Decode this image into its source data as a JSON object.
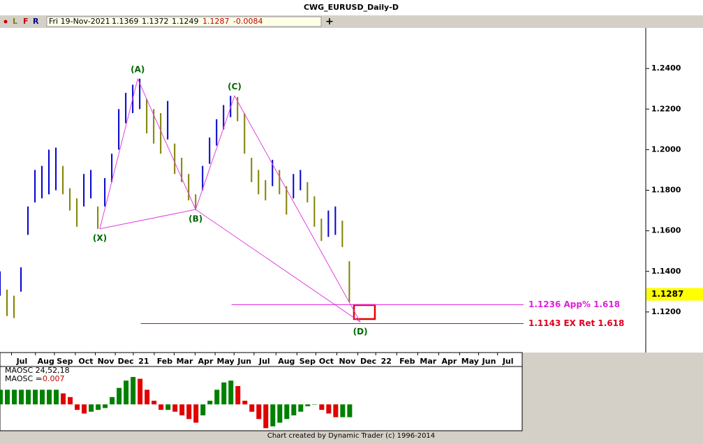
{
  "title": "CWG_EURUSD_Daily-D",
  "toolbar": {
    "buttons": [
      "L",
      "F",
      "R"
    ],
    "date": "Fri 19-Nov-2021",
    "open": 1.1369,
    "high": 1.1372,
    "low": 1.1249,
    "close": 1.1287,
    "change": -0.0084
  },
  "footer": "Chart created by Dynamic Trader  (c) 1996-2014",
  "chart_data": [
    {
      "type": "ohlc",
      "x": [
        0,
        7,
        14,
        21,
        28,
        35,
        42,
        49,
        56,
        63,
        70,
        77,
        84,
        91,
        98,
        105,
        112,
        119,
        126,
        133,
        140,
        147,
        154,
        161,
        168,
        175,
        182,
        189,
        196,
        203,
        210,
        217,
        224,
        231,
        238,
        245,
        252,
        259,
        266,
        273,
        280,
        287,
        294,
        301,
        308,
        315,
        322,
        329,
        336,
        343,
        350
      ],
      "high": [
        1.14,
        1.131,
        1.128,
        1.142,
        1.172,
        1.19,
        1.192,
        1.2,
        1.201,
        1.192,
        1.181,
        1.176,
        1.188,
        1.19,
        1.172,
        1.186,
        1.198,
        1.22,
        1.228,
        1.232,
        1.235,
        1.225,
        1.22,
        1.218,
        1.224,
        1.203,
        1.196,
        1.188,
        1.178,
        1.192,
        1.206,
        1.215,
        1.222,
        1.2265,
        1.226,
        1.218,
        1.196,
        1.19,
        1.185,
        1.195,
        1.19,
        1.182,
        1.188,
        1.19,
        1.184,
        1.177,
        1.166,
        1.17,
        1.172,
        1.165,
        1.145
      ],
      "low": [
        1.128,
        1.118,
        1.117,
        1.13,
        1.158,
        1.174,
        1.176,
        1.178,
        1.18,
        1.178,
        1.17,
        1.162,
        1.172,
        1.176,
        1.161,
        1.172,
        1.184,
        1.2,
        1.213,
        1.218,
        1.22,
        1.208,
        1.203,
        1.198,
        1.205,
        1.188,
        1.184,
        1.175,
        1.1705,
        1.18,
        1.193,
        1.202,
        1.21,
        1.216,
        1.214,
        1.198,
        1.184,
        1.178,
        1.175,
        1.182,
        1.178,
        1.168,
        1.176,
        1.18,
        1.174,
        1.162,
        1.155,
        1.157,
        1.158,
        1.152,
        1.1249
      ],
      "up_color": "#0000cc",
      "down_color": "#808000",
      "xlim": [
        0,
        647
      ],
      "ylim": [
        1.1,
        1.26
      ],
      "xticks": [
        {
          "value": 22,
          "label": "Jul"
        },
        {
          "value": 46,
          "label": "Aug"
        },
        {
          "value": 65,
          "label": "Sep"
        },
        {
          "value": 86,
          "label": "Oct"
        },
        {
          "value": 106,
          "label": "Nov"
        },
        {
          "value": 126,
          "label": "Dec"
        },
        {
          "value": 144,
          "label": "21"
        },
        {
          "value": 165,
          "label": "Feb"
        },
        {
          "value": 185,
          "label": "Mar"
        },
        {
          "value": 206,
          "label": "Apr"
        },
        {
          "value": 226,
          "label": "May"
        },
        {
          "value": 245,
          "label": "Jun"
        },
        {
          "value": 265,
          "label": "Jul"
        },
        {
          "value": 287,
          "label": "Aug"
        },
        {
          "value": 308,
          "label": "Sep"
        },
        {
          "value": 327,
          "label": "Oct"
        },
        {
          "value": 348,
          "label": "Nov"
        },
        {
          "value": 369,
          "label": "Dec"
        },
        {
          "value": 387,
          "label": "22"
        },
        {
          "value": 408,
          "label": "Feb"
        },
        {
          "value": 429,
          "label": "Mar"
        },
        {
          "value": 450,
          "label": "Apr"
        },
        {
          "value": 471,
          "label": "May"
        },
        {
          "value": 490,
          "label": "Jun"
        },
        {
          "value": 509,
          "label": "Jul"
        }
      ],
      "yticks": [
        {
          "value": 1.24,
          "label": "1.2400"
        },
        {
          "value": 1.22,
          "label": "1.2200"
        },
        {
          "value": 1.2,
          "label": "1.2000"
        },
        {
          "value": 1.18,
          "label": "1.1800"
        },
        {
          "value": 1.16,
          "label": "1.1600"
        },
        {
          "value": 1.14,
          "label": "1.1400"
        },
        {
          "value": 1.12,
          "label": "1.1200"
        }
      ],
      "pattern": [
        {
          "label": "(X)",
          "x": 100,
          "y": 1.161
        },
        {
          "label": "(A)",
          "x": 138,
          "y": 1.2349
        },
        {
          "label": "(B)",
          "x": 196,
          "y": 1.1705
        },
        {
          "label": "(C)",
          "x": 235,
          "y": 1.2265
        },
        {
          "label": "(D)",
          "x": 361,
          "y": 1.115
        }
      ],
      "pattern_color": "#e040e0",
      "pattern_label_color": "#006600",
      "levels": [
        {
          "value": 1.1236,
          "label": "1.1236 App% 1.618",
          "color": "#e020e0",
          "x_start": 232
        },
        {
          "value": 1.1143,
          "label": "1.1143 EX Ret 1.618",
          "color": "#e00020",
          "x_start": 141
        }
      ]
    },
    {
      "type": "histogram",
      "label": "MAOSC 24,52,18",
      "readout_label": "MAOSC =",
      "values": [
        0.008,
        0.008,
        0.008,
        0.008,
        0.008,
        0.008,
        0.008,
        0.008,
        0.008,
        0.006,
        0.004,
        -0.003,
        -0.005,
        -0.004,
        -0.003,
        -0.002,
        0.004,
        0.009,
        0.013,
        0.015,
        0.014,
        0.008,
        0.002,
        -0.003,
        -0.003,
        -0.004,
        -0.006,
        -0.008,
        -0.01,
        -0.006,
        0.002,
        0.008,
        0.012,
        0.013,
        0.01,
        0.002,
        -0.004,
        -0.008,
        -0.013,
        -0.012,
        -0.01,
        -0.008,
        -0.006,
        -0.004,
        -0.001,
        0,
        -0.003,
        -0.005,
        -0.007,
        -0.007,
        -0.007
      ],
      "up_color": "#008000",
      "down_color": "#e00000",
      "ylim": [
        -0.0144,
        0.0207
      ]
    }
  ]
}
